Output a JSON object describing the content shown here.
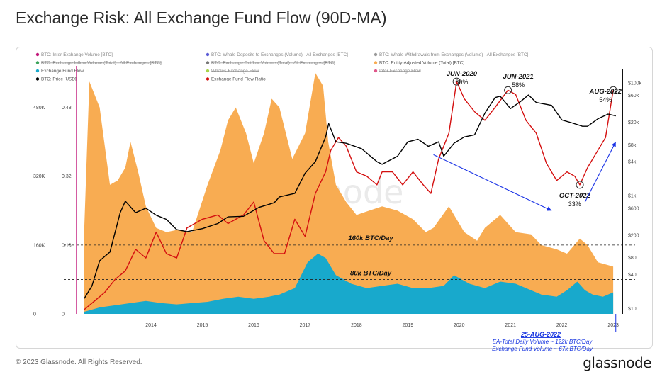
{
  "title": "Exchange Risk: All Exchange Fund Flow (90D-MA)",
  "copyright": "© 2023 Glassnode. All Rights Reserved.",
  "brand": "glassnode",
  "watermark": "glassnode",
  "colors": {
    "entity_volume": "#f8ac52",
    "fund_flow": "#18a9cc",
    "price": "#000000",
    "ratio": "#d40f0f",
    "arrow": "#1a33e6",
    "pink_line": "#c2187a"
  },
  "legend": [
    {
      "label": "BTC: Inter-Exchange Volume [BTC]",
      "color": "#c2187a",
      "struck": true
    },
    {
      "label": "BTC: Whale Deposits to Exchanges (Volume) - All Exchanges [BTC]",
      "color": "#5b5bd6",
      "struck": true
    },
    {
      "label": "BTC: Whale Withdrawals from Exchanges (Volume) - All Exchanges [BTC]",
      "color": "#999999",
      "struck": true
    },
    {
      "label": "BTC: Exchange Inflow Volume (Total) - All Exchanges [BTC]",
      "color": "#3aa35a",
      "struck": true
    },
    {
      "label": "BTC: Exchange Outflow Volume (Total) - All Exchanges [BTC]",
      "color": "#777777",
      "struck": true
    },
    {
      "label": "BTC: Entity-Adjusted Volume (Total) [BTC]",
      "color": "#f8ac52",
      "struck": false
    },
    {
      "label": "Exchange Fund Flow",
      "color": "#18a9cc",
      "struck": false
    },
    {
      "label": "Whales-Exchange Flow",
      "color": "#a8d44a",
      "struck": true
    },
    {
      "label": "Inter-Exchange Flow",
      "color": "#e0568a",
      "struck": true
    },
    {
      "label": "BTC: Price [USD]",
      "color": "#000000",
      "struck": false
    },
    {
      "label": "Exchange Fund Flow Ratio",
      "color": "#d40f0f",
      "struck": false
    }
  ],
  "annotations": {
    "jun2020_label": "JUN-2020",
    "jun2020_value": "60%",
    "jun2021_label": "JUN-2021",
    "jun2021_value": "58%",
    "aug2022_label": "AUG-2022",
    "aug2022_value": "54%",
    "oct2022_label": "OCT-2022",
    "oct2022_value": "33%",
    "line160k": "160k BTC/Day",
    "line80k": "80k BTC/Day",
    "date_note": "25-AUG-2022",
    "note1": "EA-Total Daily Volume ~ 122k BTC/Day",
    "note2": "Exchange Fund Volume ~ 67k BTC/Day"
  },
  "chart_data": {
    "type": "area",
    "x_ticks": [
      "2014",
      "2015",
      "2016",
      "2017",
      "2018",
      "2019",
      "2020",
      "2021",
      "2022",
      "2023"
    ],
    "y_left_volume_ticks": [
      "0",
      "160K",
      "320K",
      "480K"
    ],
    "y_left_ratio_ticks": [
      "0",
      "0.16",
      "0.32",
      "0.48"
    ],
    "y_right_price_ticks": [
      "$10",
      "$40",
      "$80",
      "$200",
      "$600",
      "$1k",
      "$4k",
      "$8k",
      "$20k",
      "$60k",
      "$100k"
    ],
    "y_left_volume_range": [
      0,
      560000
    ],
    "y_left_ratio_range": [
      0,
      0.56
    ],
    "y_right_price_scale": "log",
    "reference_lines": [
      {
        "label": "160k BTC/Day",
        "value": 160000
      },
      {
        "label": "80k BTC/Day",
        "value": 80000
      }
    ],
    "series": [
      {
        "name": "BTC: Entity-Adjusted Volume (Total) [BTC]",
        "type": "area",
        "axis": "volume",
        "x": [
          2013.2,
          2013.3,
          2013.5,
          2013.7,
          2013.85,
          2014.0,
          2014.1,
          2014.25,
          2014.4,
          2014.6,
          2014.8,
          2015.0,
          2015.3,
          2015.6,
          2015.85,
          2016.0,
          2016.15,
          2016.35,
          2016.5,
          2016.7,
          2016.85,
          2017.0,
          2017.25,
          2017.5,
          2017.7,
          2017.85,
          2017.95,
          2018.1,
          2018.3,
          2018.5,
          2018.75,
          2019.0,
          2019.3,
          2019.6,
          2019.85,
          2020.0,
          2020.3,
          2020.6,
          2020.85,
          2021.0,
          2021.3,
          2021.6,
          2021.9,
          2022.1,
          2022.4,
          2022.6,
          2022.85,
          2023.0,
          2023.2,
          2023.5
        ],
        "values": [
          200000,
          540000,
          480000,
          300000,
          310000,
          340000,
          400000,
          330000,
          250000,
          200000,
          190000,
          195000,
          190000,
          300000,
          380000,
          450000,
          480000,
          420000,
          350000,
          420000,
          500000,
          480000,
          360000,
          420000,
          560000,
          530000,
          400000,
          300000,
          260000,
          230000,
          240000,
          250000,
          240000,
          220000,
          190000,
          200000,
          250000,
          190000,
          170000,
          200000,
          230000,
          190000,
          185000,
          160000,
          150000,
          140000,
          175000,
          160000,
          120000,
          110000
        ]
      },
      {
        "name": "Exchange Fund Flow",
        "type": "area",
        "axis": "volume",
        "x": [
          2013.2,
          2013.5,
          2013.8,
          2014.1,
          2014.4,
          2014.7,
          2015.0,
          2015.3,
          2015.6,
          2015.9,
          2016.2,
          2016.5,
          2016.8,
          2017.0,
          2017.3,
          2017.55,
          2017.75,
          2017.9,
          2018.1,
          2018.4,
          2018.7,
          2019.0,
          2019.3,
          2019.6,
          2019.9,
          2020.2,
          2020.4,
          2020.7,
          2021.0,
          2021.3,
          2021.6,
          2021.9,
          2022.1,
          2022.4,
          2022.6,
          2022.8,
          2022.95,
          2023.1,
          2023.3,
          2023.5
        ],
        "values": [
          5000,
          15000,
          20000,
          25000,
          30000,
          25000,
          22000,
          25000,
          28000,
          35000,
          40000,
          35000,
          40000,
          45000,
          60000,
          120000,
          140000,
          130000,
          90000,
          70000,
          60000,
          65000,
          70000,
          60000,
          60000,
          65000,
          90000,
          70000,
          60000,
          75000,
          70000,
          55000,
          45000,
          40000,
          55000,
          75000,
          55000,
          45000,
          40000,
          50000
        ]
      },
      {
        "name": "BTC: Price [USD]",
        "type": "line",
        "axis": "price",
        "x": [
          2013.2,
          2013.35,
          2013.5,
          2013.7,
          2013.9,
          2014.0,
          2014.2,
          2014.4,
          2014.6,
          2014.8,
          2015.0,
          2015.2,
          2015.5,
          2015.8,
          2016.0,
          2016.3,
          2016.6,
          2016.9,
          2017.0,
          2017.3,
          2017.5,
          2017.7,
          2017.9,
          2017.96,
          2018.1,
          2018.3,
          2018.6,
          2018.9,
          2019.0,
          2019.3,
          2019.5,
          2019.7,
          2019.9,
          2020.1,
          2020.2,
          2020.4,
          2020.6,
          2020.8,
          2021.0,
          2021.2,
          2021.3,
          2021.5,
          2021.7,
          2021.85,
          2022.0,
          2022.3,
          2022.5,
          2022.7,
          2022.9,
          2023.0,
          2023.2,
          2023.4,
          2023.55
        ],
        "values": [
          15,
          25,
          70,
          100,
          500,
          800,
          500,
          600,
          450,
          380,
          250,
          230,
          260,
          320,
          420,
          430,
          620,
          750,
          950,
          1100,
          2500,
          4000,
          11000,
          19000,
          9000,
          8500,
          6800,
          4000,
          3600,
          5000,
          9000,
          10000,
          7500,
          9000,
          5000,
          8500,
          11000,
          12000,
          29000,
          55000,
          58000,
          35000,
          47000,
          61000,
          45000,
          40000,
          22000,
          19500,
          17000,
          17000,
          23000,
          28000,
          26000
        ]
      },
      {
        "name": "Exchange Fund Flow Ratio",
        "type": "line",
        "axis": "ratio",
        "x": [
          2013.2,
          2013.4,
          2013.6,
          2013.8,
          2014.0,
          2014.2,
          2014.4,
          2014.6,
          2014.8,
          2015.0,
          2015.2,
          2015.5,
          2015.8,
          2016.0,
          2016.3,
          2016.5,
          2016.7,
          2016.9,
          2017.1,
          2017.3,
          2017.5,
          2017.7,
          2017.9,
          2018.0,
          2018.15,
          2018.3,
          2018.5,
          2018.7,
          2018.9,
          2019.0,
          2019.2,
          2019.4,
          2019.6,
          2019.8,
          2019.95,
          2020.1,
          2020.3,
          2020.45,
          2020.6,
          2020.8,
          2021.0,
          2021.2,
          2021.45,
          2021.6,
          2021.8,
          2022.0,
          2022.2,
          2022.4,
          2022.6,
          2022.75,
          2022.85,
          2023.0,
          2023.2,
          2023.35,
          2023.5
        ],
        "values": [
          0.01,
          0.03,
          0.05,
          0.08,
          0.1,
          0.15,
          0.13,
          0.19,
          0.14,
          0.13,
          0.2,
          0.22,
          0.23,
          0.21,
          0.23,
          0.26,
          0.17,
          0.14,
          0.14,
          0.22,
          0.18,
          0.28,
          0.33,
          0.38,
          0.41,
          0.39,
          0.33,
          0.32,
          0.3,
          0.33,
          0.33,
          0.3,
          0.33,
          0.3,
          0.28,
          0.36,
          0.42,
          0.54,
          0.5,
          0.47,
          0.45,
          0.48,
          0.52,
          0.51,
          0.45,
          0.42,
          0.35,
          0.31,
          0.33,
          0.32,
          0.3,
          0.34,
          0.38,
          0.41,
          0.52
        ]
      }
    ]
  }
}
